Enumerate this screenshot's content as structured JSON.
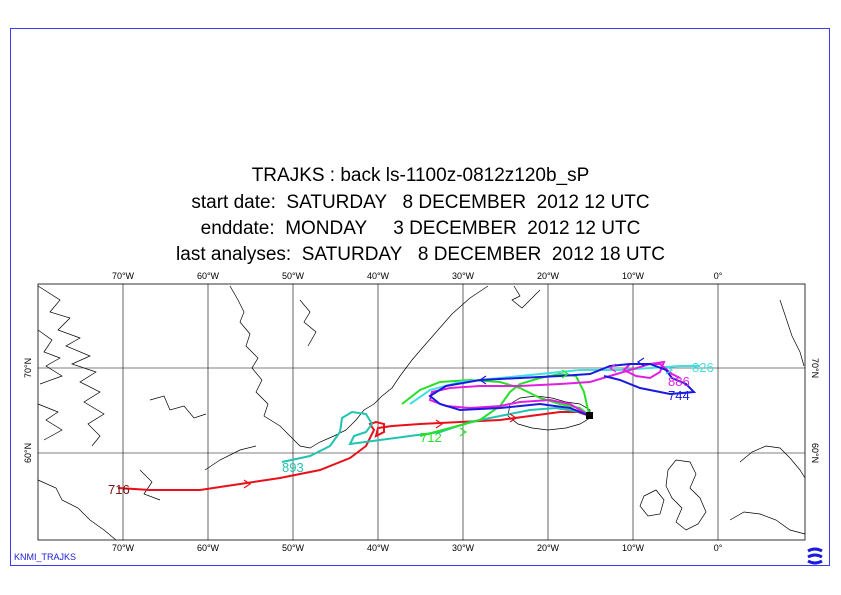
{
  "header": {
    "line1": "TRAJKS : back ls-1100z-0812z120b_sP",
    "line2": "start date:  SATURDAY   8 DECEMBER  2012 12 UTC",
    "line3": "enddate:  MONDAY     3 DECEMBER  2012 12 UTC",
    "line4": "last analyses:  SATURDAY   8 DECEMBER  2012 18 UTC"
  },
  "map": {
    "lon_labels": [
      "70°W",
      "60°W",
      "50°W",
      "40°W",
      "30°W",
      "20°W",
      "10°W",
      "0°"
    ],
    "lat_labels": [
      "70°N",
      "60°N"
    ],
    "trajectories": [
      {
        "label": "716",
        "color": "#e8101a",
        "label_color": "#7a1414"
      },
      {
        "label": "893",
        "color": "#20c4b0",
        "label_color": "#20c4b0"
      },
      {
        "label": "712",
        "color": "#28e028",
        "label_color": "#28e028"
      },
      {
        "label": "826",
        "color": "#40e0e0",
        "label_color": "#40e0e0"
      },
      {
        "label": "886",
        "color": "#e020e0",
        "label_color": "#e020e0"
      },
      {
        "label": "744",
        "color": "#1a1ae0",
        "label_color": "#1a1ae0"
      }
    ]
  },
  "footer": {
    "source": "KNMI_TRAJKS",
    "logo": "ecmwf-logo-icon"
  }
}
